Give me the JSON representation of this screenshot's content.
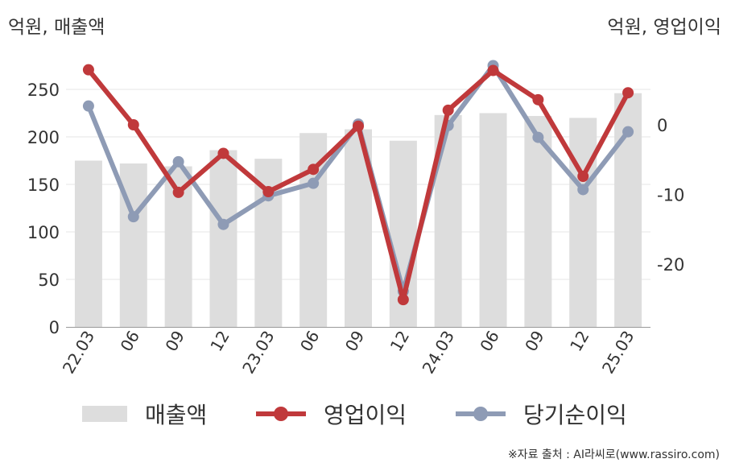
{
  "left_unit_label": "억원, 매출액",
  "right_unit_label": "억원, 영업이익",
  "source_text": "※자료 출처 : AI라씨로(www.rassiro.com)",
  "colors": {
    "revenue_bar": "#dddddd",
    "operating_profit": "#c0393b",
    "net_income": "#8e9bb5",
    "axis": "#999999",
    "grid": "#e6e6e6",
    "text": "#333333"
  },
  "chart_data": {
    "type": "bar",
    "categories": [
      "22.03",
      "06",
      "09",
      "12",
      "23.03",
      "06",
      "09",
      "12",
      "24.03",
      "06",
      "09",
      "12",
      "25.03"
    ],
    "left_axis": {
      "min": 0,
      "max": 275,
      "ticks": [
        0,
        50,
        100,
        150,
        200,
        250
      ]
    },
    "right_axis": {
      "min": -29,
      "max": 18,
      "ticks": [
        0,
        -10,
        -20
      ]
    },
    "grid": true,
    "legend_position": "bottom",
    "series": [
      {
        "name": "매출액",
        "type": "bar",
        "axis": "left",
        "values": [
          175,
          172,
          169,
          186,
          177,
          204,
          208,
          196,
          223,
          225,
          222,
          220,
          246
        ]
      },
      {
        "name": "영업이익",
        "type": "line",
        "axis": "right",
        "values": [
          7.9,
          0.0,
          -9.7,
          -4.1,
          -9.6,
          -6.4,
          -0.2,
          -25.1,
          2.1,
          7.8,
          3.6,
          -7.4,
          4.6
        ]
      },
      {
        "name": "당기순이익",
        "type": "line",
        "axis": "right",
        "values": [
          2.7,
          -13.2,
          -5.3,
          -14.3,
          -10.2,
          -8.4,
          0.1,
          -23.9,
          -0.1,
          8.5,
          -1.8,
          -9.3,
          -1.0
        ]
      }
    ]
  }
}
